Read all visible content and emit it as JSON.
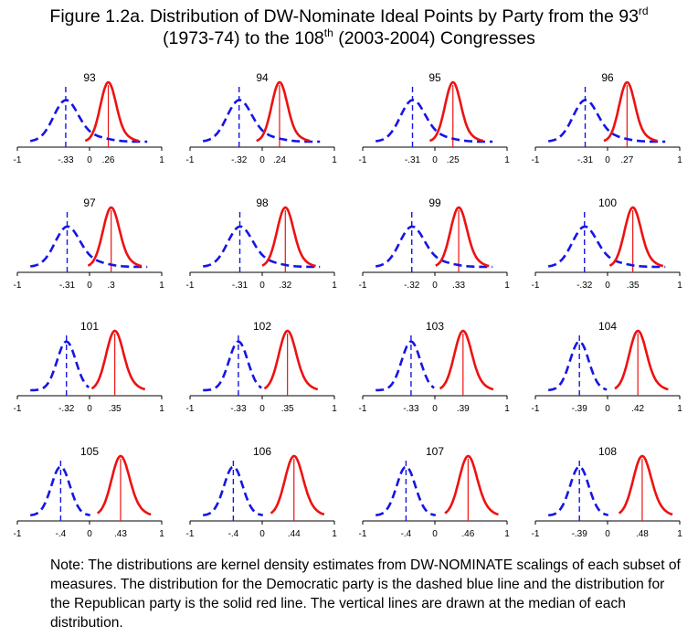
{
  "title": {
    "line1_prefix": "Figure 1.2a. Distribution of DW-Nominate Ideal Points by Party from the 93",
    "line1_sup": "rd",
    "line2_prefix": "(1973-74) to the 108",
    "line2_sup": "th",
    "line2_suffix": " (2003-2004) Congresses"
  },
  "note": "Note: The distributions are kernel density estimates from DW-NOMINATE scalings of each subset of measures.   The distribution for the Democratic party is the dashed blue line and the distribution for the Republican party is the solid red line.  The vertical lines are drawn at the median of each distribution.",
  "colors": {
    "democrat": "#1515e6",
    "republican": "#ee1111",
    "axis": "#000000"
  },
  "chart_data": {
    "type": "line",
    "xlim": [
      -1,
      1
    ],
    "xlabel": "",
    "ylabel": "",
    "grid": false,
    "legend": "none",
    "series_legend": [
      {
        "name": "Democratic",
        "style": "dashed",
        "color": "#1515e6"
      },
      {
        "name": "Republican",
        "style": "solid",
        "color": "#ee1111"
      }
    ],
    "panels": [
      {
        "congress": "93",
        "dem_median": -0.33,
        "rep_median": 0.26,
        "dem_label": "-.33",
        "rep_label": ".26"
      },
      {
        "congress": "94",
        "dem_median": -0.32,
        "rep_median": 0.24,
        "dem_label": "-.32",
        "rep_label": ".24"
      },
      {
        "congress": "95",
        "dem_median": -0.31,
        "rep_median": 0.25,
        "dem_label": "-.31",
        "rep_label": ".25"
      },
      {
        "congress": "96",
        "dem_median": -0.31,
        "rep_median": 0.27,
        "dem_label": "-.31",
        "rep_label": ".27"
      },
      {
        "congress": "97",
        "dem_median": -0.31,
        "rep_median": 0.3,
        "dem_label": "-.31",
        "rep_label": ".3"
      },
      {
        "congress": "98",
        "dem_median": -0.31,
        "rep_median": 0.32,
        "dem_label": "-.31",
        "rep_label": ".32"
      },
      {
        "congress": "99",
        "dem_median": -0.32,
        "rep_median": 0.33,
        "dem_label": "-.32",
        "rep_label": ".33"
      },
      {
        "congress": "100",
        "dem_median": -0.32,
        "rep_median": 0.35,
        "dem_label": "-.32",
        "rep_label": ".35"
      },
      {
        "congress": "101",
        "dem_median": -0.32,
        "rep_median": 0.35,
        "dem_label": "-.32",
        "rep_label": ".35"
      },
      {
        "congress": "102",
        "dem_median": -0.33,
        "rep_median": 0.35,
        "dem_label": "-.33",
        "rep_label": ".35"
      },
      {
        "congress": "103",
        "dem_median": -0.33,
        "rep_median": 0.39,
        "dem_label": "-.33",
        "rep_label": ".39"
      },
      {
        "congress": "104",
        "dem_median": -0.39,
        "rep_median": 0.42,
        "dem_label": "-.39",
        "rep_label": ".42"
      },
      {
        "congress": "105",
        "dem_median": -0.4,
        "rep_median": 0.43,
        "dem_label": "-.4",
        "rep_label": ".43"
      },
      {
        "congress": "106",
        "dem_median": -0.4,
        "rep_median": 0.44,
        "dem_label": "-.4",
        "rep_label": ".44"
      },
      {
        "congress": "107",
        "dem_median": -0.4,
        "rep_median": 0.46,
        "dem_label": "-.4",
        "rep_label": ".46"
      },
      {
        "congress": "108",
        "dem_median": -0.39,
        "rep_median": 0.48,
        "dem_label": "-.39",
        "rep_label": ".48"
      }
    ],
    "axis_ticks": [
      "-1",
      "0",
      "1"
    ]
  }
}
